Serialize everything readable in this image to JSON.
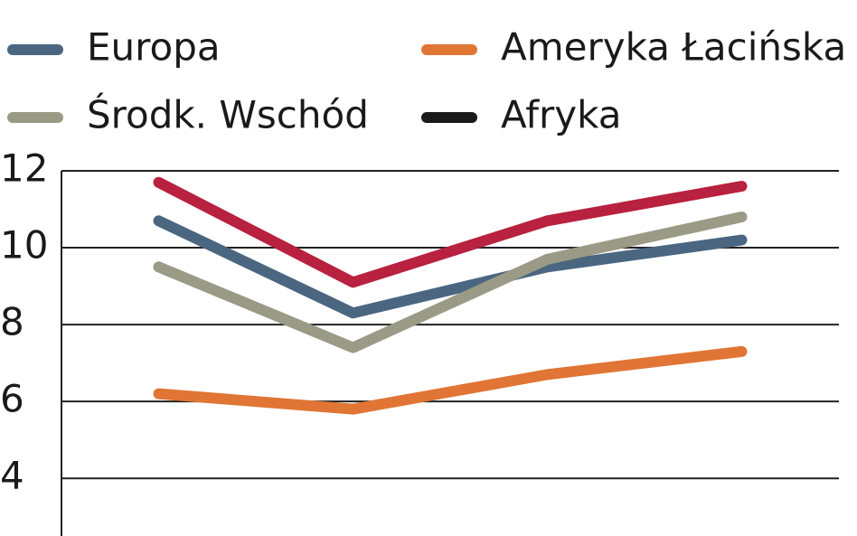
{
  "chart_data": {
    "type": "line",
    "categories": [
      null,
      null,
      null,
      null
    ],
    "series": [
      {
        "color": "#b8213f",
        "values": [
          11.7,
          9.1,
          10.7,
          11.6
        ]
      },
      {
        "name": "Europa",
        "color": "#4a6681",
        "values": [
          10.7,
          8.3,
          9.5,
          10.2
        ]
      },
      {
        "name": "Ameryka Łacińska",
        "color": "#e07535",
        "values": [
          6.2,
          5.8,
          6.7,
          7.3
        ]
      },
      {
        "name": "Środk. Wschód",
        "color": "#9a9a86",
        "values": [
          9.5,
          7.4,
          9.7,
          10.8
        ]
      },
      {
        "name": "Afryka",
        "color": "#1a1a1a",
        "values": [
          null,
          null,
          null,
          null
        ]
      }
    ],
    "ylim": [
      2.5,
      12
    ],
    "yticks": [
      4,
      6,
      8,
      10,
      12
    ],
    "grid": true,
    "legend": "top"
  }
}
